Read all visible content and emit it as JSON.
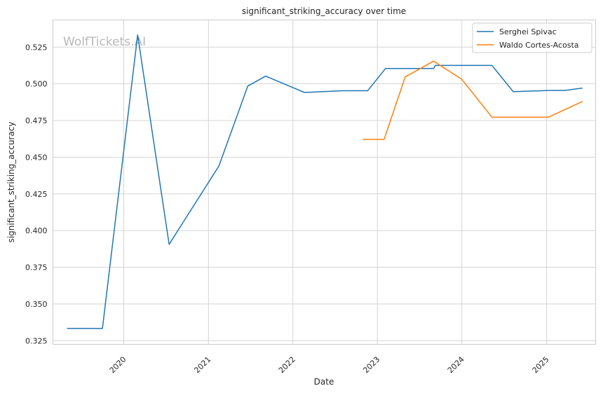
{
  "chart_data": {
    "type": "line",
    "title": "significant_striking_accuracy over time",
    "xlabel": "Date",
    "ylabel": "significant_striking_accuracy",
    "x_axis_type": "date",
    "xlim": [
      "2019-03-01",
      "2025-08-01"
    ],
    "ylim": [
      0.3225,
      0.5435
    ],
    "yticks": [
      0.325,
      0.35,
      0.375,
      0.4,
      0.425,
      0.45,
      0.475,
      0.5,
      0.525
    ],
    "ytick_labels": [
      "0.325",
      "0.350",
      "0.375",
      "0.400",
      "0.425",
      "0.450",
      "0.475",
      "0.500",
      "0.525"
    ],
    "xticks": [
      "2020-01-01",
      "2021-01-01",
      "2022-01-01",
      "2023-01-01",
      "2024-01-01",
      "2025-01-01"
    ],
    "xtick_labels": [
      "2020",
      "2021",
      "2022",
      "2023",
      "2024",
      "2025"
    ],
    "grid": true,
    "legend_position": "top-right",
    "watermark": "WolfTickets.AI",
    "series": [
      {
        "name": "Serghei Spivac",
        "color": "#1f77b4",
        "points": [
          [
            "2019-05-01",
            0.3333
          ],
          [
            "2019-10-01",
            0.3333
          ],
          [
            "2020-03-01",
            0.5333
          ],
          [
            "2020-07-15",
            0.3906
          ],
          [
            "2021-02-15",
            0.444
          ],
          [
            "2021-06-20",
            0.4985
          ],
          [
            "2021-09-05",
            0.5052
          ],
          [
            "2022-02-20",
            0.4941
          ],
          [
            "2022-08-05",
            0.4953
          ],
          [
            "2022-11-20",
            0.4953
          ],
          [
            "2023-02-05",
            0.5104
          ],
          [
            "2023-09-01",
            0.5104
          ],
          [
            "2023-09-08",
            0.5125
          ],
          [
            "2024-05-10",
            0.5125
          ],
          [
            "2024-08-10",
            0.4946
          ],
          [
            "2025-01-10",
            0.4955
          ],
          [
            "2025-03-20",
            0.4955
          ],
          [
            "2025-06-05",
            0.4971
          ]
        ]
      },
      {
        "name": "Waldo Cortes-Acosta",
        "color": "#ff7f0e",
        "points": [
          [
            "2022-10-30",
            0.4621
          ],
          [
            "2023-01-30",
            0.4621
          ],
          [
            "2023-05-01",
            0.5047
          ],
          [
            "2023-09-01",
            0.5155
          ],
          [
            "2024-01-01",
            0.503
          ],
          [
            "2024-05-10",
            0.4773
          ],
          [
            "2025-01-10",
            0.4773
          ],
          [
            "2025-06-05",
            0.488
          ]
        ]
      }
    ]
  }
}
